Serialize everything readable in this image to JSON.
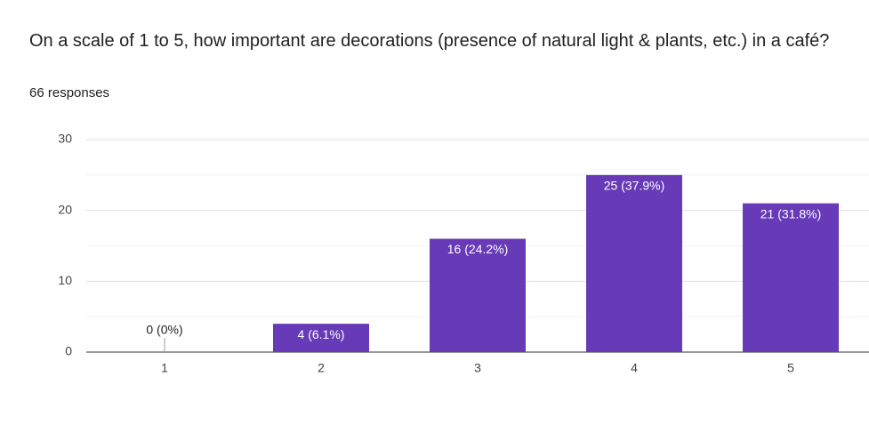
{
  "chart_data": {
    "type": "bar",
    "title": "On a scale of 1 to 5, how important are decorations (presence of natural light & plants, etc.) in a café?",
    "subtitle": "66 responses",
    "categories": [
      "1",
      "2",
      "3",
      "4",
      "5"
    ],
    "values": [
      0,
      4,
      16,
      25,
      21
    ],
    "value_labels": [
      "0 (0%)",
      "4 (6.1%)",
      "16 (24.2%)",
      "25 (37.9%)",
      "21 (31.8%)"
    ],
    "color": "#673ab7",
    "ylim": [
      0,
      30
    ],
    "yticks": [
      0,
      10,
      20,
      30
    ],
    "minor_yticks": [
      5,
      15,
      25
    ],
    "grid": true
  }
}
